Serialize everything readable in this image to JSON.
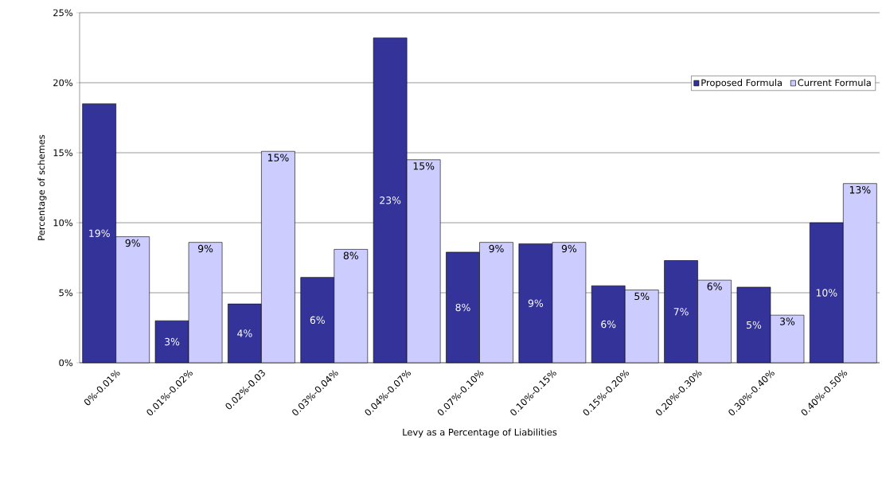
{
  "chart_data": {
    "type": "bar",
    "xlabel": "Levy as a Percentage of Liabilities",
    "ylabel": "Percentage of schemes",
    "categories": [
      "0%-0.01%",
      "0.01%-0.02%",
      "0.02%-0.03",
      "0.03%-0.04%",
      "0.04%-0.07%",
      "0.07%-0.10%",
      "0.10%-0.15%",
      "0.15%-0.20%",
      "0.20%-0.30%",
      "0.30%-0.40%",
      "0.40%-0.50%"
    ],
    "series": [
      {
        "name": "Proposed Formula",
        "color": "#333399",
        "values": [
          18.5,
          3.0,
          4.2,
          6.1,
          23.2,
          7.9,
          8.5,
          5.5,
          7.3,
          5.4,
          10.0
        ],
        "value_labels": [
          "19%",
          "3%",
          "4%",
          "6%",
          "23%",
          "8%",
          "9%",
          "6%",
          "7%",
          "5%",
          "10%"
        ]
      },
      {
        "name": "Current Formula",
        "color": "#ccccff",
        "values": [
          9.0,
          8.6,
          15.1,
          8.1,
          14.5,
          8.6,
          8.6,
          5.2,
          5.9,
          3.4,
          12.8
        ],
        "value_labels": [
          "9%",
          "9%",
          "15%",
          "8%",
          "15%",
          "9%",
          "9%",
          "5%",
          "6%",
          "3%",
          "13%"
        ]
      }
    ],
    "ylim": [
      0,
      25
    ],
    "yticks": [
      {
        "value": 0,
        "label": "0%"
      },
      {
        "value": 5,
        "label": "5%"
      },
      {
        "value": 10,
        "label": "10%"
      },
      {
        "value": 15,
        "label": "15%"
      },
      {
        "value": 20,
        "label": "20%"
      },
      {
        "value": 25,
        "label": "25%"
      }
    ],
    "grid": "y",
    "legend": "top right"
  }
}
